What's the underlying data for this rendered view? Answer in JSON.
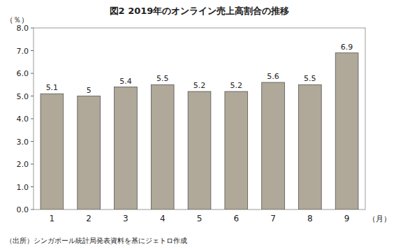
{
  "chart_data": {
    "type": "bar",
    "title": "図2  2019年のオンライン売上高割合の推移",
    "ylabel": "（％）",
    "xlabel": "（月）",
    "footnote": "（出所）シンガポール統計局発表資料を基にジェトロ作成",
    "categories": [
      "1",
      "2",
      "3",
      "4",
      "5",
      "6",
      "7",
      "8",
      "9"
    ],
    "values": [
      5.1,
      5.0,
      5.4,
      5.5,
      5.2,
      5.2,
      5.6,
      5.5,
      6.9
    ],
    "value_labels": [
      "5.1",
      "5",
      "5.4",
      "5.5",
      "5.2",
      "5.2",
      "5.6",
      "5.5",
      "6.9"
    ],
    "data_labels": true,
    "color": "#b0a898",
    "ylim": [
      0.0,
      8.0
    ],
    "yticks": [
      {
        "value": 0.0,
        "label": "0.0"
      },
      {
        "value": 1.0,
        "label": "1.0"
      },
      {
        "value": 2.0,
        "label": "2.0"
      },
      {
        "value": 3.0,
        "label": "3.0"
      },
      {
        "value": 4.0,
        "label": "4.0"
      },
      {
        "value": 5.0,
        "label": "5.0"
      },
      {
        "value": 6.0,
        "label": "6.0"
      },
      {
        "value": 7.0,
        "label": "7.0"
      },
      {
        "value": 8.0,
        "label": "8.0"
      }
    ],
    "grid": false
  }
}
